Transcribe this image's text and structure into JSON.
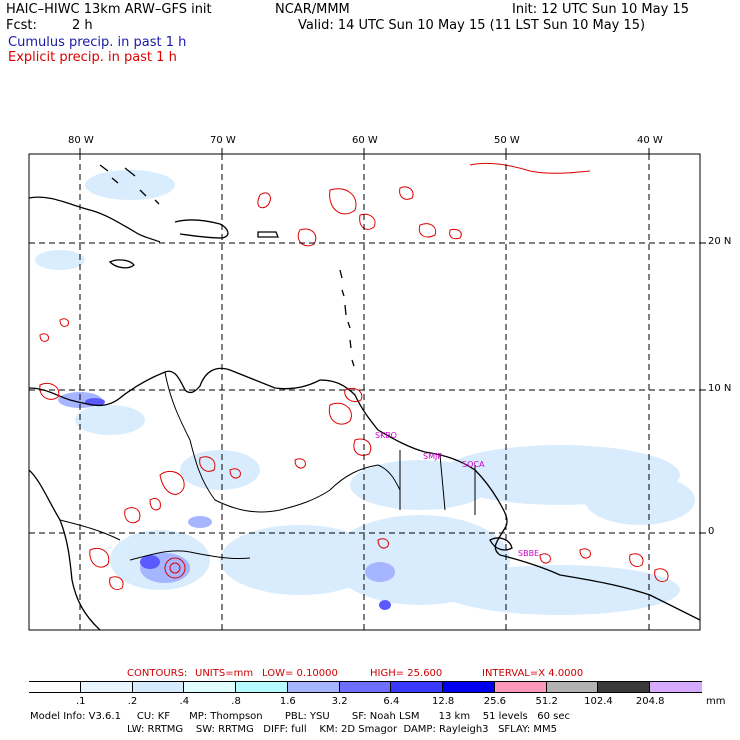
{
  "header": {
    "model": "HAIC–HIWC 13km ARW–GFS init",
    "org": "NCAR/MMM",
    "init": "Init: 12 UTC Sun 10 May 15",
    "fcst_label": "Fcst:",
    "fcst_value": "2 h",
    "valid": "Valid: 14 UTC Sun 10 May 15 (11 LST Sun 10 May 15)",
    "cumulus": "Cumulus precip. in past 1 h",
    "explicit": "Explicit precip. in past 1 h",
    "cumulus_color": "#1a1aa6",
    "explicit_color": "#dd0000"
  },
  "map": {
    "lon_labels": [
      "80 W",
      "70 W",
      "60 W",
      "50 W",
      "40 W"
    ],
    "lat_labels": [
      "20 N",
      "10 N",
      "0"
    ],
    "stations": [
      "SKBO",
      "SMJP",
      "SOCA",
      "SBBE"
    ],
    "station_color": "#cc00cc"
  },
  "contours": {
    "label": "CONTOURS:",
    "units": "UNITS=mm",
    "low": "LOW= 0.10000",
    "high": "HIGH= 25.600",
    "interval": "INTERVAL=X 4.0000"
  },
  "colorbar": {
    "labels": [
      ".1",
      ".2",
      ".4",
      ".8",
      "1.6",
      "3.2",
      "6.4",
      "12.8",
      "25.6",
      "51.2",
      "102.4",
      "204.8"
    ],
    "unit": "mm",
    "colors": [
      "#ffffff",
      "#e8f4ff",
      "#d6ecfd",
      "#e0ffff",
      "#b5fbff",
      "#a6b5ff",
      "#6f6fff",
      "#3a3aff",
      "#0000ee",
      "#ff99bb",
      "#b2b2b2",
      "#3a3a3a",
      "#d6aaff"
    ]
  },
  "footer": {
    "line1": "Model Info: V3.6.1     CU: KF      MP: Thompson       PBL: YSU       SF: Noah LSM      13 km    51 levels   60 sec",
    "line2": "LW: RRTMG    SW: RRTMG   DIFF: full    KM: 2D Smagor  DAMP: Rayleigh3   SFLAY: MM5"
  }
}
